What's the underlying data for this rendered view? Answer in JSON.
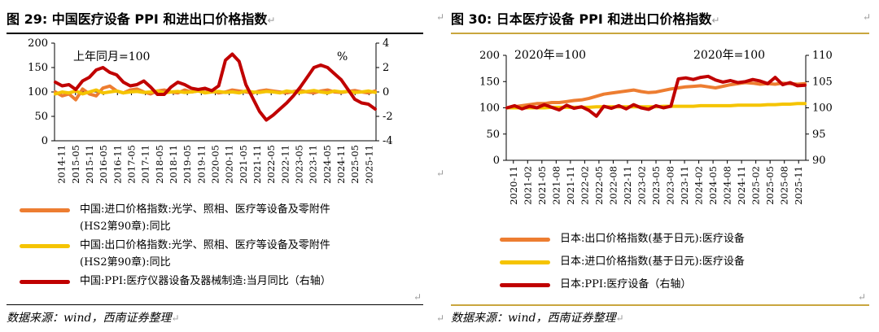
{
  "left": {
    "figure_title": "图 29:  中国医疗设备 PPI 和进出口价格指数",
    "source": "数据来源：wind，西南证券整理",
    "legend": [
      {
        "label": "中国:进口价格指数:光学、照相、医疗等设备及零附件\n(HS2第90章):同比",
        "color": "#ED7D31"
      },
      {
        "label": "中国:出口价格指数:光学、照相、医疗等设备及零附件\n(HS2第90章):同比",
        "color": "#F5C400"
      },
      {
        "label": "中国:PPI:医疗仪器设备及器械制造:当月同比（右轴）",
        "color": "#C00000"
      }
    ]
  },
  "right": {
    "figure_title": "图 30:  日本医疗设备 PPI 和进出口价格指数",
    "source": "数据来源：wind，西南证券整理",
    "legend": [
      {
        "label": "日本:出口价格指数(基于日元):医疗设备",
        "color": "#ED7D31"
      },
      {
        "label": "日本:进口价格指数(基于日元):医疗设备",
        "color": "#F5C400"
      },
      {
        "label": "日本:PPI:医疗设备（右轴）",
        "color": "#C00000"
      }
    ]
  },
  "chart_data": [
    {
      "type": "line",
      "annotation_left": "上年同月=100",
      "annotation_right": "%",
      "x_ticks": [
        "2014-11",
        "2015-05",
        "2015-11",
        "2016-05",
        "2016-11",
        "2017-05",
        "2017-11",
        "2018-05",
        "2018-11",
        "2019-05",
        "2019-11",
        "2020-05",
        "2020-11",
        "2021-05",
        "2021-11",
        "2022-05",
        "2022-11",
        "2023-05",
        "2023-11",
        "2024-05",
        "2024-11",
        "2025-05",
        "2025-11"
      ],
      "ylim_left": [
        0,
        200
      ],
      "yticks_left": [
        0,
        50,
        100,
        150,
        200
      ],
      "ylim_right": [
        -4,
        4
      ],
      "yticks_right": [
        -4,
        -2,
        0,
        2,
        4
      ],
      "grid": false,
      "series": [
        {
          "name": "中国:进口价格指数:光学、照相、医疗等设备及零附件(HS2第90章):同比",
          "axis": "left",
          "color": "#ED7D31",
          "values": [
            100,
            92,
            96,
            84,
            106,
            96,
            92,
            108,
            112,
            102,
            98,
            104,
            106,
            100,
            96,
            102,
            104,
            100,
            98,
            104,
            100,
            102,
            106,
            102,
            98,
            100,
            104,
            102,
            100,
            98,
            102,
            104,
            102,
            100,
            98,
            101,
            103,
            100,
            98,
            102,
            104,
            100,
            99,
            101,
            103,
            100,
            98,
            102
          ]
        },
        {
          "name": "中国:出口价格指数:光学、照相、医疗等设备及零附件(HS2第90章):同比",
          "axis": "left",
          "color": "#F5C400",
          "values": [
            96,
            100,
            98,
            102,
            96,
            100,
            104,
            98,
            100,
            102,
            98,
            100,
            101,
            99,
            100,
            102,
            98,
            100,
            101,
            99,
            100,
            102,
            98,
            100,
            101,
            99,
            100,
            98,
            102,
            100,
            99,
            101,
            100,
            98,
            102,
            100,
            99,
            101,
            103,
            100,
            98,
            102,
            100,
            101,
            99,
            100,
            102,
            99
          ]
        },
        {
          "name": "中国:PPI:医疗仪器设备及器械制造:当月同比（右轴）",
          "axis": "right",
          "color": "#C00000",
          "values": [
            0.8,
            0.5,
            0.6,
            0.2,
            0.9,
            1.2,
            1.8,
            2.0,
            1.6,
            1.4,
            0.8,
            0.5,
            0.6,
            0.9,
            0.4,
            -0.2,
            -0.2,
            0.4,
            0.8,
            0.6,
            0.3,
            0.2,
            0.3,
            0.1,
            0.5,
            2.6,
            3.1,
            2.5,
            0.6,
            -0.5,
            -1.6,
            -2.3,
            -1.9,
            -1.4,
            -0.9,
            -0.3,
            0.4,
            1.2,
            2.0,
            2.2,
            2.0,
            1.5,
            1.0,
            0.2,
            -0.6,
            -0.9,
            -1.0,
            -1.4
          ]
        }
      ]
    },
    {
      "type": "line",
      "annotation_left": "2020年=100",
      "annotation_right": "2020年=100",
      "x_ticks": [
        "2020-11",
        "2021-02",
        "2021-05",
        "2021-08",
        "2021-11",
        "2022-02",
        "2022-05",
        "2022-08",
        "2022-11",
        "2023-02",
        "2023-05",
        "2023-08",
        "2023-11",
        "2024-02",
        "2024-05",
        "2024-08",
        "2024-11",
        "2025-02",
        "2025-05",
        "2025-08",
        "2025-11"
      ],
      "ylim_left": [
        0,
        200
      ],
      "yticks_left": [
        0,
        50,
        100,
        150,
        200
      ],
      "ylim_right": [
        90,
        110
      ],
      "yticks_right": [
        90,
        95,
        100,
        105,
        110
      ],
      "grid": false,
      "series": [
        {
          "name": "日本:出口价格指数(基于日元):医疗设备",
          "axis": "left",
          "color": "#ED7D31",
          "values": [
            100,
            102,
            104,
            106,
            108,
            108,
            110,
            110,
            112,
            114,
            115,
            118,
            122,
            126,
            128,
            130,
            132,
            134,
            131,
            129,
            130,
            133,
            136,
            138,
            140,
            141,
            142,
            140,
            138,
            141,
            144,
            146,
            148,
            147,
            145,
            146,
            145,
            147,
            146,
            145,
            146
          ]
        },
        {
          "name": "日本:进口价格指数(基于日元):医疗设备",
          "axis": "left",
          "color": "#F5C400",
          "values": [
            100,
            100,
            100,
            100,
            100,
            100,
            101,
            101,
            101,
            101,
            101,
            101,
            102,
            102,
            102,
            102,
            102,
            102,
            102,
            102,
            102,
            103,
            103,
            103,
            103,
            103,
            104,
            104,
            104,
            104,
            104,
            105,
            105,
            105,
            105,
            106,
            106,
            107,
            107,
            108,
            108
          ]
        },
        {
          "name": "日本:PPI:医疗设备（右轴）",
          "axis": "right",
          "color": "#C00000",
          "values": [
            100.0,
            100.4,
            99.8,
            100.3,
            100.0,
            100.6,
            100.1,
            99.6,
            100.5,
            99.9,
            100.2,
            99.5,
            98.4,
            100.3,
            99.9,
            100.4,
            99.8,
            100.6,
            100.0,
            99.7,
            100.4,
            100.0,
            100.3,
            105.5,
            105.7,
            105.4,
            105.8,
            106.0,
            105.3,
            104.9,
            105.2,
            104.8,
            105.0,
            105.4,
            105.1,
            104.6,
            105.8,
            104.4,
            104.8,
            104.2,
            104.3
          ]
        }
      ]
    }
  ]
}
